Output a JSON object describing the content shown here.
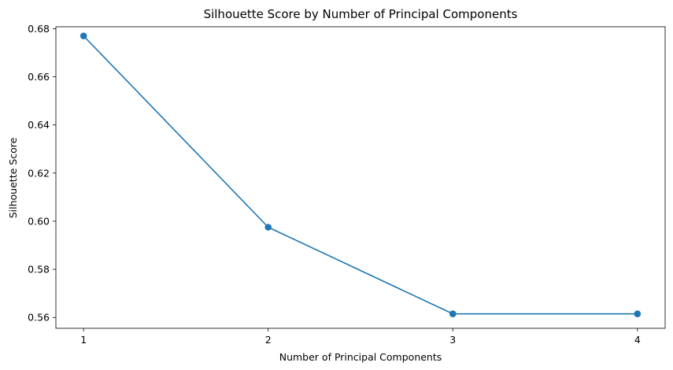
{
  "chart_data": {
    "type": "line",
    "title": "Silhouette Score by Number of Principal Components",
    "xlabel": "Number of Principal Components",
    "ylabel": "Silhouette Score",
    "x": [
      1,
      2,
      3,
      4
    ],
    "series": [
      {
        "values": [
          0.677,
          0.5975,
          0.5615,
          0.5615
        ],
        "color": "#1f77b4",
        "marker": "circle"
      }
    ],
    "xticks": [
      "1",
      "2",
      "3",
      "4"
    ],
    "yticks": [
      "0.56",
      "0.58",
      "0.60",
      "0.62",
      "0.64",
      "0.66",
      "0.68"
    ],
    "xlim": [
      0.85,
      4.15
    ],
    "ylim": [
      0.5555,
      0.6808
    ],
    "grid": false,
    "legend": "none"
  }
}
